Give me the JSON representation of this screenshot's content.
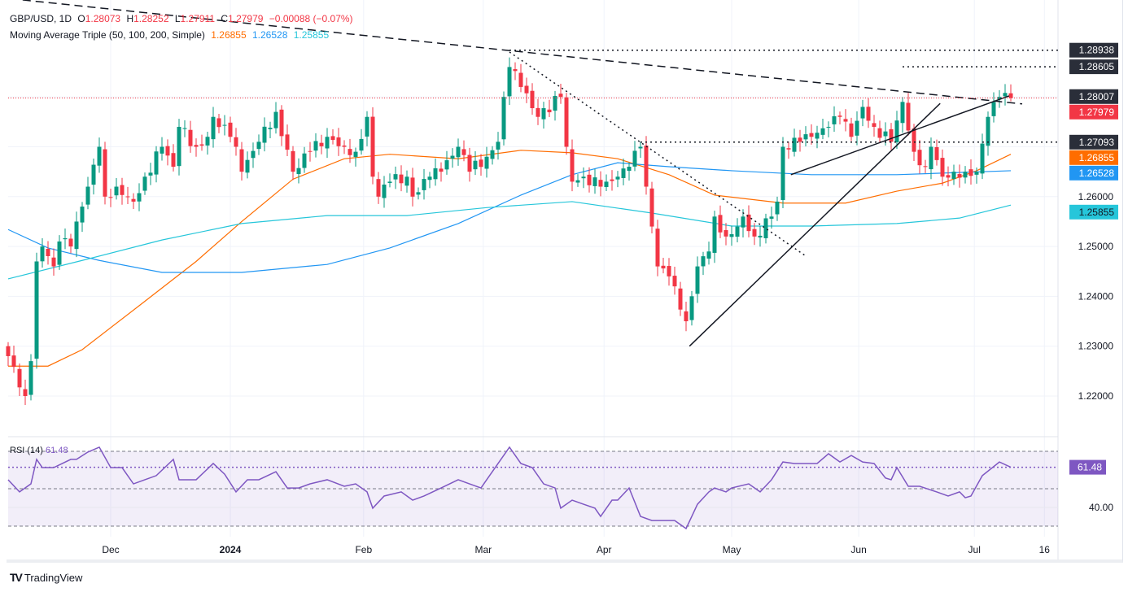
{
  "header": {
    "symbol": "GBP/USD, 1D",
    "o_label": "O",
    "open": "1.28073",
    "h_label": "H",
    "high": "1.28252",
    "l_label": "L",
    "low": "1.27911",
    "c_label": "C",
    "close": "1.27979",
    "change": "−0.00088 (−0.07%)",
    "ma_title": "Moving Average Triple (50, 100, 200, Simple)",
    "ma50": "1.26855",
    "ma100": "1.26528",
    "ma200": "1.25855"
  },
  "rsi_header": {
    "title": "RSI (14)",
    "value": "61.48"
  },
  "brand": "TradingView",
  "colors": {
    "up": "#089981",
    "down": "#f23645",
    "ma50": "#ff6d00",
    "ma100": "#2196f3",
    "ma200": "#26c6da",
    "rsi": "#7e57c2",
    "dark_tag": "#2a2e39"
  },
  "chart_data": [
    {
      "type": "candlestick",
      "title": "GBP/USD, 1D",
      "ylim": [
        1.21,
        1.298
      ],
      "y_ticks": [
        "1.22000",
        "1.23000",
        "1.24000",
        "1.25000",
        "1.26000"
      ],
      "x_ticks": [
        {
          "label": "Dec",
          "bar": 18
        },
        {
          "label": "2024",
          "bar": 39,
          "bold": true
        },
        {
          "label": "Feb",
          "bar": 62.4
        },
        {
          "label": "Mar",
          "bar": 83.4
        },
        {
          "label": "Apr",
          "bar": 104.6
        },
        {
          "label": "May",
          "bar": 127
        },
        {
          "label": "Jun",
          "bar": 149.3
        },
        {
          "label": "Jul",
          "bar": 169.6
        },
        {
          "label": "16",
          "bar": 181.9
        }
      ],
      "close_path": [
        [
          0,
          1.228
        ],
        [
          3,
          1.22
        ],
        [
          4,
          1.227
        ],
        [
          5,
          1.247
        ],
        [
          6,
          1.25
        ],
        [
          8,
          1.246
        ],
        [
          9,
          1.251
        ],
        [
          11,
          1.25
        ],
        [
          13,
          1.258
        ],
        [
          14,
          1.262
        ],
        [
          16,
          1.27
        ],
        [
          17,
          1.26
        ],
        [
          19,
          1.262
        ],
        [
          21,
          1.26
        ],
        [
          22,
          1.259
        ],
        [
          24,
          1.264
        ],
        [
          27,
          1.27
        ],
        [
          29,
          1.266
        ],
        [
          30,
          1.274
        ],
        [
          33,
          1.27
        ],
        [
          35,
          1.272
        ],
        [
          36,
          1.276
        ],
        [
          39,
          1.272
        ],
        [
          40,
          1.27
        ],
        [
          41,
          1.265
        ],
        [
          44,
          1.271
        ],
        [
          47,
          1.277
        ],
        [
          50,
          1.265
        ],
        [
          53,
          1.269
        ],
        [
          56,
          1.272
        ],
        [
          59,
          1.27
        ],
        [
          61,
          1.269
        ],
        [
          63,
          1.276
        ],
        [
          64,
          1.264
        ],
        [
          65,
          1.26
        ],
        [
          67,
          1.263
        ],
        [
          70,
          1.264
        ],
        [
          71,
          1.26
        ],
        [
          74,
          1.264
        ],
        [
          76,
          1.265
        ],
        [
          79,
          1.27
        ],
        [
          81,
          1.265
        ],
        [
          84,
          1.268
        ],
        [
          86,
          1.271
        ],
        [
          87,
          1.28
        ],
        [
          88,
          1.286
        ],
        [
          90,
          1.282
        ],
        [
          93,
          1.276
        ],
        [
          97,
          1.28
        ],
        [
          98,
          1.27
        ],
        [
          99,
          1.263
        ],
        [
          101,
          1.264
        ],
        [
          104,
          1.262
        ],
        [
          105,
          1.263
        ],
        [
          107,
          1.264
        ],
        [
          109,
          1.266
        ],
        [
          111,
          1.27
        ],
        [
          112,
          1.262
        ],
        [
          113,
          1.254
        ],
        [
          114,
          1.246
        ],
        [
          116,
          1.244
        ],
        [
          117,
          1.242
        ],
        [
          119,
          1.235
        ],
        [
          121,
          1.246
        ],
        [
          123,
          1.249
        ],
        [
          124,
          1.256
        ],
        [
          126,
          1.252
        ],
        [
          128,
          1.254
        ],
        [
          129,
          1.256
        ],
        [
          131,
          1.252
        ],
        [
          134,
          1.256
        ],
        [
          135,
          1.259
        ],
        [
          136,
          1.27
        ],
        [
          139,
          1.271
        ],
        [
          141,
          1.272
        ],
        [
          144,
          1.274
        ],
        [
          146,
          1.276
        ],
        [
          148,
          1.272
        ],
        [
          150,
          1.278
        ],
        [
          152,
          1.274
        ],
        [
          155,
          1.271
        ],
        [
          157,
          1.279
        ],
        [
          159,
          1.269
        ],
        [
          161,
          1.266
        ],
        [
          162,
          1.27
        ],
        [
          164,
          1.264
        ],
        [
          166,
          1.265
        ],
        [
          168,
          1.265
        ],
        [
          170,
          1.265
        ],
        [
          172,
          1.276
        ],
        [
          174,
          1.28
        ],
        [
          175,
          1.2808
        ]
      ],
      "last_candle": {
        "open": 1.28073,
        "high": 1.28252,
        "low": 1.27911,
        "close": 1.27979
      },
      "series": [
        {
          "name": "SMA 50",
          "value_label": "1.26855",
          "color": "#ff6d00",
          "points": [
            [
              0,
              1.226
            ],
            [
              7,
              1.226
            ],
            [
              13,
              1.2293
            ],
            [
              24,
              1.239
            ],
            [
              33,
              1.247
            ],
            [
              41,
              1.255
            ],
            [
              50,
              1.2635
            ],
            [
              59,
              1.2676
            ],
            [
              67,
              1.2685
            ],
            [
              79,
              1.2676
            ],
            [
              90,
              1.2693
            ],
            [
              99,
              1.2688
            ],
            [
              107,
              1.2676
            ],
            [
              116,
              1.2644
            ],
            [
              124,
              1.2603
            ],
            [
              136,
              1.2587
            ],
            [
              147,
              1.2587
            ],
            [
              156,
              1.2611
            ],
            [
              164,
              1.2627
            ],
            [
              170,
              1.2652
            ],
            [
              176,
              1.2685
            ]
          ]
        },
        {
          "name": "SMA 100",
          "value_label": "1.26528",
          "color": "#2196f3",
          "points": [
            [
              0,
              1.2534
            ],
            [
              7,
              1.2497
            ],
            [
              16,
              1.2472
            ],
            [
              27,
              1.2448
            ],
            [
              41,
              1.2448
            ],
            [
              56,
              1.2464
            ],
            [
              67,
              1.2497
            ],
            [
              79,
              1.2546
            ],
            [
              90,
              1.2603
            ],
            [
              99,
              1.2644
            ],
            [
              107,
              1.2668
            ],
            [
              116,
              1.266
            ],
            [
              127,
              1.2652
            ],
            [
              141,
              1.2644
            ],
            [
              156,
              1.2644
            ],
            [
              176,
              1.2652
            ]
          ]
        },
        {
          "name": "SMA 200",
          "value_label": "1.25855",
          "color": "#26c6da",
          "points": [
            [
              0,
              1.2435
            ],
            [
              13,
              1.2472
            ],
            [
              27,
              1.2513
            ],
            [
              41,
              1.2546
            ],
            [
              56,
              1.2562
            ],
            [
              70,
              1.2562
            ],
            [
              84,
              1.2578
            ],
            [
              99,
              1.259
            ],
            [
              113,
              1.2567
            ],
            [
              127,
              1.2541
            ],
            [
              141,
              1.2541
            ],
            [
              156,
              1.2546
            ],
            [
              167,
              1.2557
            ],
            [
              176,
              1.2583
            ]
          ]
        }
      ],
      "levels": [
        {
          "price": 1.28938,
          "label": "1.28938",
          "from_bar": 88
        },
        {
          "price": 1.28605,
          "label": "1.28605",
          "from_bar": 157
        },
        {
          "price": 1.27093,
          "label": "1.27093",
          "from_bar": 111
        }
      ],
      "current_price": {
        "price": 1.27979,
        "label": "1.27979",
        "high_tag": "1.28007"
      },
      "trendlines": [
        {
          "style": "dashed",
          "from": [
            -2,
            1.3
          ],
          "to": [
            178,
            1.2786
          ]
        },
        {
          "style": "dotted",
          "from": [
            88,
            1.289
          ],
          "to": [
            140,
            1.2481
          ]
        },
        {
          "style": "solid",
          "from": [
            119.6,
            1.23
          ],
          "to": [
            163.6,
            1.2787
          ]
        },
        {
          "style": "solid",
          "from": [
            137.4,
            1.2644
          ],
          "to": [
            175.7,
            1.2802
          ]
        }
      ]
    },
    {
      "type": "line",
      "title": "RSI (14)",
      "ylim": [
        25,
        75
      ],
      "bands": [
        70,
        50,
        30
      ],
      "y_ticks": [
        "40.00"
      ],
      "current": 61.48,
      "current_label": "61.48",
      "points": [
        [
          0,
          54.8
        ],
        [
          2,
          48.3
        ],
        [
          4,
          52.6
        ],
        [
          5,
          65.7
        ],
        [
          6,
          61.3
        ],
        [
          8,
          61.3
        ],
        [
          11,
          65.7
        ],
        [
          12,
          65.7
        ],
        [
          14,
          69.6
        ],
        [
          16,
          72.2
        ],
        [
          18,
          61.3
        ],
        [
          20,
          61.3
        ],
        [
          22,
          52.6
        ],
        [
          24,
          54.8
        ],
        [
          26,
          57.0
        ],
        [
          29,
          65.7
        ],
        [
          30,
          54.8
        ],
        [
          33,
          54.8
        ],
        [
          36,
          63.5
        ],
        [
          38,
          57.8
        ],
        [
          40,
          48.3
        ],
        [
          42,
          54.8
        ],
        [
          44,
          54.8
        ],
        [
          47,
          59.1
        ],
        [
          49,
          50.4
        ],
        [
          51,
          50.4
        ],
        [
          53,
          52.6
        ],
        [
          56,
          54.8
        ],
        [
          59,
          51.3
        ],
        [
          61,
          52.6
        ],
        [
          63,
          48.3
        ],
        [
          64,
          39.6
        ],
        [
          66,
          46.1
        ],
        [
          69,
          48.3
        ],
        [
          71,
          43.9
        ],
        [
          73,
          46.1
        ],
        [
          76,
          50.4
        ],
        [
          79,
          54.8
        ],
        [
          81,
          52.6
        ],
        [
          83,
          50.4
        ],
        [
          84,
          54.8
        ],
        [
          86,
          63.5
        ],
        [
          88,
          72.2
        ],
        [
          90,
          63.5
        ],
        [
          92,
          61.3
        ],
        [
          94,
          52.6
        ],
        [
          96,
          50.4
        ],
        [
          97,
          39.6
        ],
        [
          99,
          43.9
        ],
        [
          101,
          41.7
        ],
        [
          103,
          39.6
        ],
        [
          104,
          35.2
        ],
        [
          106,
          43.9
        ],
        [
          107,
          43.9
        ],
        [
          109,
          50.4
        ],
        [
          111,
          35.2
        ],
        [
          113,
          33.0
        ],
        [
          115,
          33.0
        ],
        [
          117,
          33.0
        ],
        [
          119,
          28.7
        ],
        [
          121,
          41.7
        ],
        [
          123,
          48.3
        ],
        [
          124,
          50.4
        ],
        [
          126,
          48.3
        ],
        [
          127,
          50.4
        ],
        [
          130,
          52.6
        ],
        [
          132,
          48.3
        ],
        [
          134,
          54.8
        ],
        [
          136,
          64.3
        ],
        [
          138,
          63.5
        ],
        [
          140,
          63.5
        ],
        [
          142,
          63.5
        ],
        [
          144,
          68.7
        ],
        [
          146,
          64.3
        ],
        [
          148,
          67.8
        ],
        [
          150,
          64.3
        ],
        [
          152,
          63.5
        ],
        [
          154,
          55.7
        ],
        [
          155,
          54.8
        ],
        [
          156,
          61.3
        ],
        [
          158,
          51.3
        ],
        [
          160,
          51.3
        ],
        [
          163,
          48.3
        ],
        [
          165,
          46.1
        ],
        [
          167,
          48.3
        ],
        [
          168,
          45.2
        ],
        [
          169,
          46.1
        ],
        [
          171,
          57.0
        ],
        [
          174,
          64.3
        ],
        [
          176,
          61.5
        ]
      ]
    }
  ]
}
